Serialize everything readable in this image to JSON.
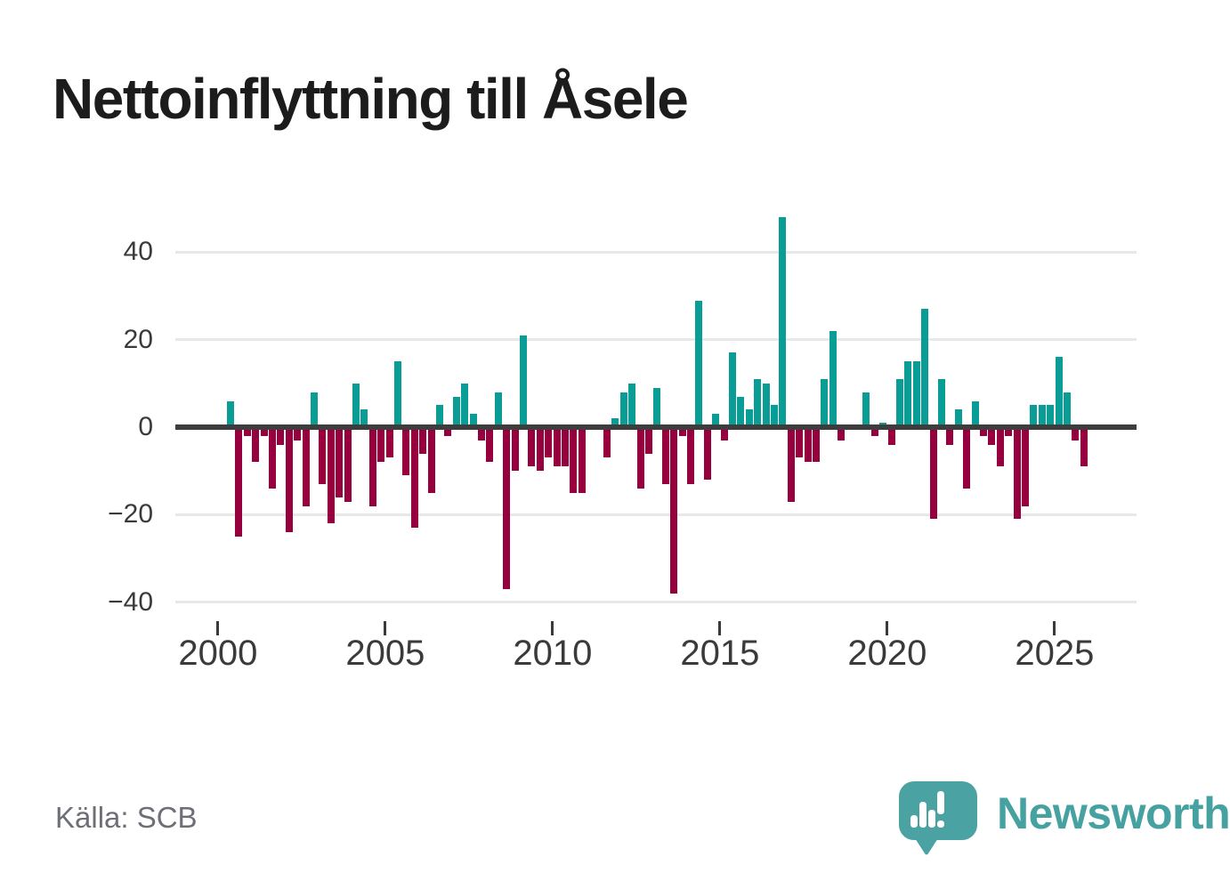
{
  "title": "Nettoinflyttning till Åsele",
  "source": "Källa: SCB",
  "brand": {
    "name": "Newsworthy",
    "icon": "speech-bubble-bar-chart-icon",
    "color": "#46a1a1"
  },
  "colors": {
    "positive_bar": "#0a9d96",
    "negative_bar": "#96003e",
    "zero_line": "#3d3d3d",
    "gridline": "#e8e8e8",
    "axis_text": "#3a3a3a",
    "source_text": "#6e6e77",
    "title_text": "#1c1c1c"
  },
  "chart_data": {
    "type": "bar",
    "title": "Nettoinflyttning till Åsele",
    "xlabel": "",
    "ylabel": "",
    "grid": "horizontal",
    "legend": "none",
    "yticks": [
      40,
      20,
      0,
      -20,
      -40
    ],
    "xticks": [
      "2000",
      "2005",
      "2010",
      "2015",
      "2020",
      "2025"
    ],
    "ylim": [
      -40,
      48
    ],
    "x": [
      "2000 Q2",
      "2000 Q3",
      "2000 Q4",
      "2001 Q1",
      "2001 Q2",
      "2001 Q3",
      "2001 Q4",
      "2002 Q1",
      "2002 Q2",
      "2002 Q3",
      "2002 Q4",
      "2003 Q1",
      "2003 Q2",
      "2003 Q3",
      "2003 Q4",
      "2004 Q1",
      "2004 Q2",
      "2004 Q3",
      "2004 Q4",
      "2005 Q1",
      "2005 Q2",
      "2005 Q3",
      "2005 Q4",
      "2006 Q1",
      "2006 Q2",
      "2006 Q3",
      "2006 Q4",
      "2007 Q1",
      "2007 Q2",
      "2007 Q3",
      "2007 Q4",
      "2008 Q1",
      "2008 Q2",
      "2008 Q3",
      "2008 Q4",
      "2009 Q1",
      "2009 Q2",
      "2009 Q3",
      "2009 Q4",
      "2010 Q1",
      "2010 Q2",
      "2010 Q3",
      "2010 Q4",
      "2011 Q1",
      "2011 Q2",
      "2011 Q3",
      "2011 Q4",
      "2012 Q1",
      "2012 Q2",
      "2012 Q3",
      "2012 Q4",
      "2013 Q1",
      "2013 Q2",
      "2013 Q3",
      "2013 Q4",
      "2014 Q1",
      "2014 Q2",
      "2014 Q3",
      "2014 Q4",
      "2015 Q1",
      "2015 Q2",
      "2015 Q3",
      "2015 Q4",
      "2016 Q1",
      "2016 Q2",
      "2016 Q3",
      "2016 Q4",
      "2017 Q1",
      "2017 Q2",
      "2017 Q3",
      "2017 Q4",
      "2018 Q1",
      "2018 Q2",
      "2018 Q3",
      "2018 Q4",
      "2019 Q1",
      "2019 Q2",
      "2019 Q3",
      "2019 Q4",
      "2020 Q1",
      "2020 Q2",
      "2020 Q3",
      "2020 Q4",
      "2021 Q1",
      "2021 Q2",
      "2021 Q3",
      "2021 Q4",
      "2022 Q1",
      "2022 Q2",
      "2022 Q3",
      "2022 Q4",
      "2023 Q1",
      "2023 Q2",
      "2023 Q3",
      "2023 Q4",
      "2024 Q1",
      "2024 Q2",
      "2024 Q3",
      "2024 Q4",
      "2025 Q1",
      "2025 Q2",
      "2025 Q3",
      "2025 Q4"
    ],
    "values": [
      6,
      -25,
      -2,
      -8,
      -2,
      -14,
      -4,
      -24,
      -3,
      -18,
      8,
      -13,
      -22,
      -16,
      -17,
      10,
      4,
      -18,
      -8,
      -7,
      15,
      -11,
      -23,
      -6,
      -15,
      5,
      -2,
      7,
      10,
      3,
      -3,
      -8,
      8,
      -37,
      -10,
      21,
      -9,
      -10,
      -7,
      -9,
      -9,
      -15,
      -15,
      0,
      0,
      -7,
      2,
      8,
      10,
      -14,
      -6,
      9,
      -13,
      -38,
      -2,
      -13,
      29,
      -12,
      3,
      -3,
      17,
      7,
      4,
      11,
      10,
      5,
      48,
      -17,
      -7,
      -8,
      -8,
      11,
      22,
      -3,
      0,
      0,
      8,
      -2,
      1,
      -4,
      11,
      15,
      15,
      27,
      -21,
      11,
      -4,
      4,
      -14,
      6,
      -2,
      -4,
      -9,
      -2,
      -21,
      -18,
      5,
      5,
      5,
      16,
      8,
      -3,
      -9
    ]
  }
}
